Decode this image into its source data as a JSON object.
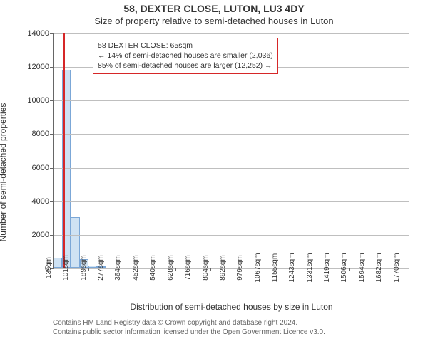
{
  "title": "58, DEXTER CLOSE, LUTON, LU3 4DY",
  "subtitle": "Size of property relative to semi-detached houses in Luton",
  "y_axis_label": "Number of semi-detached properties",
  "x_axis_label": "Distribution of semi-detached houses by size in Luton",
  "chart": {
    "type": "histogram",
    "background_color": "#ffffff",
    "grid_color": "#bfbfbf",
    "axis_color": "#666666",
    "bar_fill": "#cfe2f3",
    "bar_stroke": "#7ba7d7",
    "marker_color": "#d62728",
    "info_border": "#d62728",
    "label_fontsize": 12,
    "tick_fontsize": 11,
    "ylim": [
      0,
      14000
    ],
    "ytick_step": 2000,
    "y_ticks": [
      0,
      2000,
      4000,
      6000,
      8000,
      10000,
      12000,
      14000
    ],
    "x_min_value": 13,
    "x_max_value": 1814,
    "x_tick_values": [
      13,
      101,
      189,
      277,
      364,
      452,
      540,
      628,
      716,
      804,
      892,
      979,
      1067,
      1155,
      1243,
      1331,
      1419,
      1506,
      1594,
      1682,
      1770
    ],
    "x_tick_labels": [
      "13sqm",
      "101sqm",
      "189sqm",
      "277sqm",
      "364sqm",
      "452sqm",
      "540sqm",
      "628sqm",
      "716sqm",
      "804sqm",
      "892sqm",
      "979sqm",
      "1067sqm",
      "1155sqm",
      "1243sqm",
      "1331sqm",
      "1419sqm",
      "1506sqm",
      "1594sqm",
      "1682sqm",
      "1770sqm"
    ],
    "bars": [
      {
        "x_start": 13,
        "x_end": 57,
        "count": 600
      },
      {
        "x_start": 57,
        "x_end": 101,
        "count": 11800
      },
      {
        "x_start": 101,
        "x_end": 145,
        "count": 3000
      },
      {
        "x_start": 145,
        "x_end": 189,
        "count": 500
      },
      {
        "x_start": 189,
        "x_end": 233,
        "count": 120
      },
      {
        "x_start": 233,
        "x_end": 277,
        "count": 40
      }
    ],
    "marker_value": 65
  },
  "info_box": {
    "line1": "58 DEXTER CLOSE: 65sqm",
    "line2": "← 14% of semi-detached houses are smaller (2,036)",
    "line3": "85% of semi-detached houses are larger (12,252) →"
  },
  "footer": {
    "line1": "Contains HM Land Registry data © Crown copyright and database right 2024.",
    "line2": "Contains public sector information licensed under the Open Government Licence v3.0."
  }
}
